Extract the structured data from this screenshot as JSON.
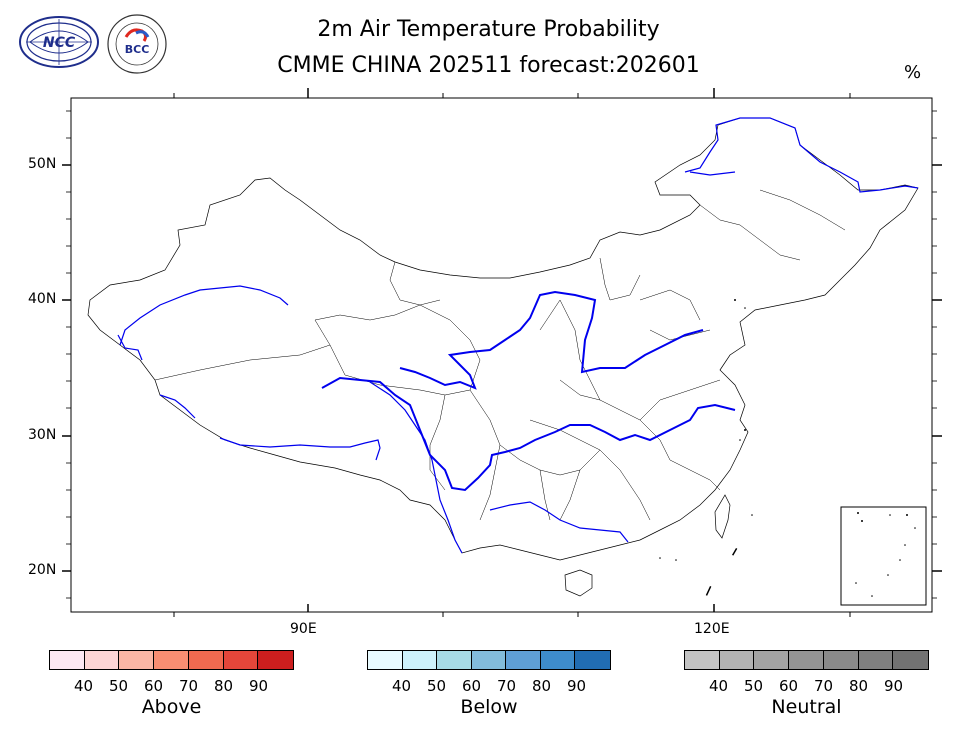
{
  "title": {
    "line1": "2m Air Temperature Probability",
    "line2": "CMME CHINA 202511 forecast:202601"
  },
  "unit_label": "%",
  "axes": {
    "lat_labels": [
      "50N",
      "40N",
      "30N",
      "20N"
    ],
    "lon_labels": [
      "90E",
      "120E"
    ]
  },
  "logos": {
    "ncc_text": "NCC",
    "bcc_text": "BCC"
  },
  "colorbars": [
    {
      "name": "Above",
      "ticks": [
        "40",
        "50",
        "60",
        "70",
        "80",
        "90"
      ],
      "colors": [
        "#fde8f3",
        "#fdd5d5",
        "#fbb7a5",
        "#f98e72",
        "#f06a50",
        "#e4463a",
        "#cc1e1e"
      ]
    },
    {
      "name": "Below",
      "ticks": [
        "40",
        "50",
        "60",
        "70",
        "80",
        "90"
      ],
      "colors": [
        "#e9fbff",
        "#cdf2fb",
        "#a7dbe6",
        "#83bcdb",
        "#5f9fd6",
        "#3e8ccb",
        "#216db2"
      ]
    },
    {
      "name": "Neutral",
      "ticks": [
        "40",
        "50",
        "60",
        "70",
        "80",
        "90"
      ],
      "colors": [
        "#c3c3c3",
        "#b2b2b2",
        "#a3a3a3",
        "#949494",
        "#8a8a8a",
        "#808080",
        "#727272"
      ]
    }
  ],
  "colors": {
    "river": "#0000ee",
    "border": "#000000"
  }
}
